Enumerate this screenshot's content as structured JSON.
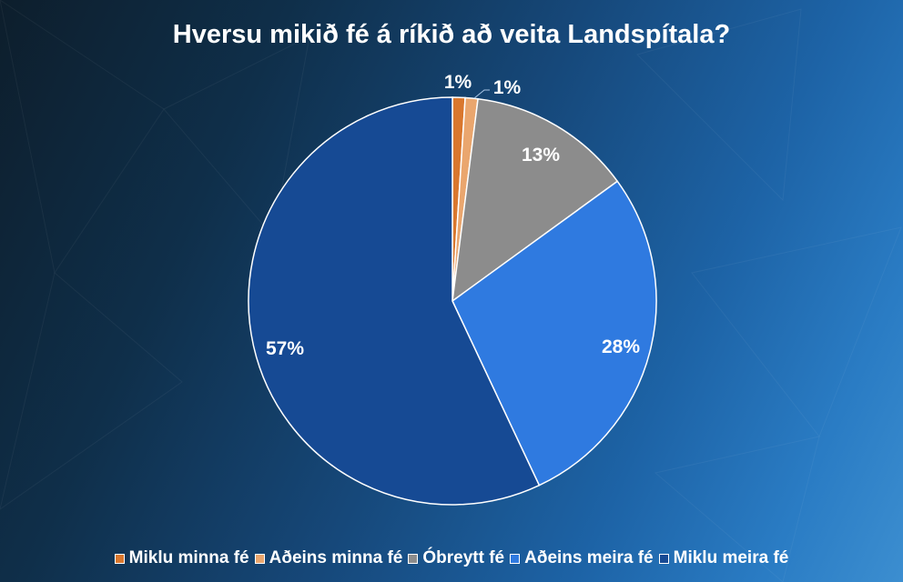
{
  "chart_data": {
    "type": "pie",
    "title": "Hversu mikið fé á ríkið að veita Landspítala?",
    "categories": [
      "Miklu minna fé",
      "Aðeins minna fé",
      "Óbreytt fé",
      "Aðeins meira fé",
      "Miklu meira fé"
    ],
    "values": [
      1,
      1,
      13,
      28,
      57
    ],
    "labels": [
      "1%",
      "1%",
      "13%",
      "28%",
      "57%"
    ],
    "colors": [
      "#d9772e",
      "#eaa66e",
      "#8c8c8c",
      "#2f7ae0",
      "#164a94"
    ],
    "legend_position": "bottom"
  }
}
